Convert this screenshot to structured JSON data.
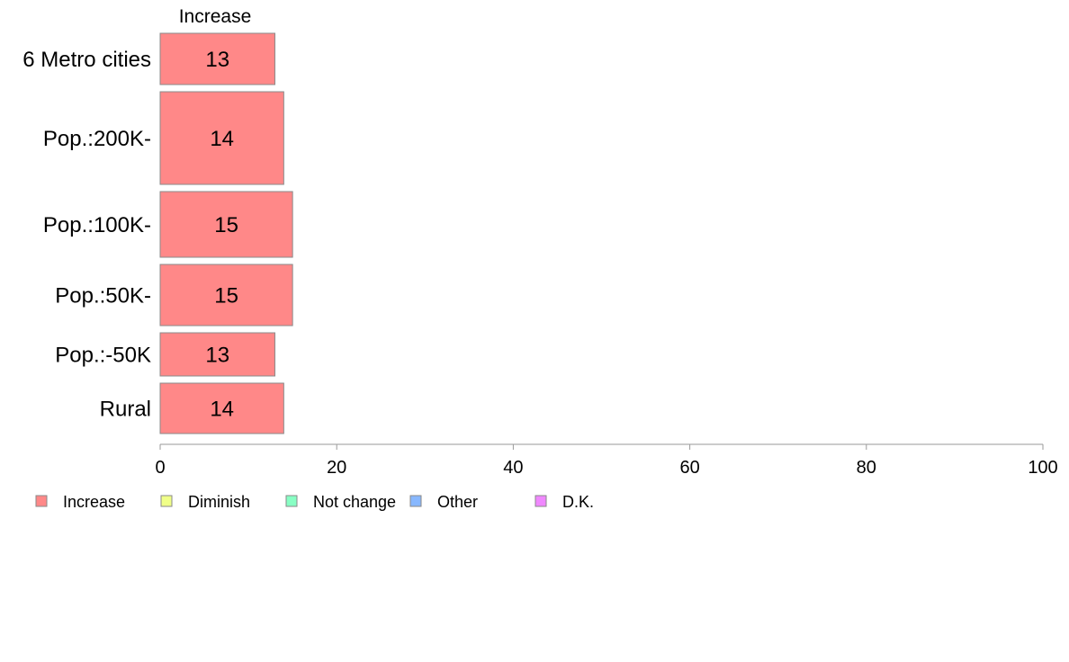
{
  "chart_data": {
    "type": "bar",
    "orientation": "horizontal",
    "stacked": true,
    "categories": [
      "6 Metro cities",
      "Pop.:200K-",
      "Pop.:100K-",
      "Pop.:50K-",
      "Pop.:-50K",
      "Rural"
    ],
    "series": [
      {
        "name": "Increase",
        "values": [
          13,
          14,
          15,
          15,
          13,
          14
        ],
        "color": "#ff8888"
      }
    ],
    "segment_header": "Increase",
    "xlim": [
      0,
      100
    ],
    "xticks": [
      "0",
      "20",
      "40",
      "60",
      "80",
      "100"
    ],
    "grid": false,
    "legend": {
      "placement": "bottom-left",
      "entries": [
        {
          "label": "Increase",
          "color": "#ff8888"
        },
        {
          "label": "Diminish",
          "color": "#f0ff88"
        },
        {
          "label": "Not change",
          "color": "#88ffc4"
        },
        {
          "label": "Other",
          "color": "#88b8ff"
        },
        {
          "label": "D.K.",
          "color": "#f088ff"
        }
      ]
    }
  }
}
